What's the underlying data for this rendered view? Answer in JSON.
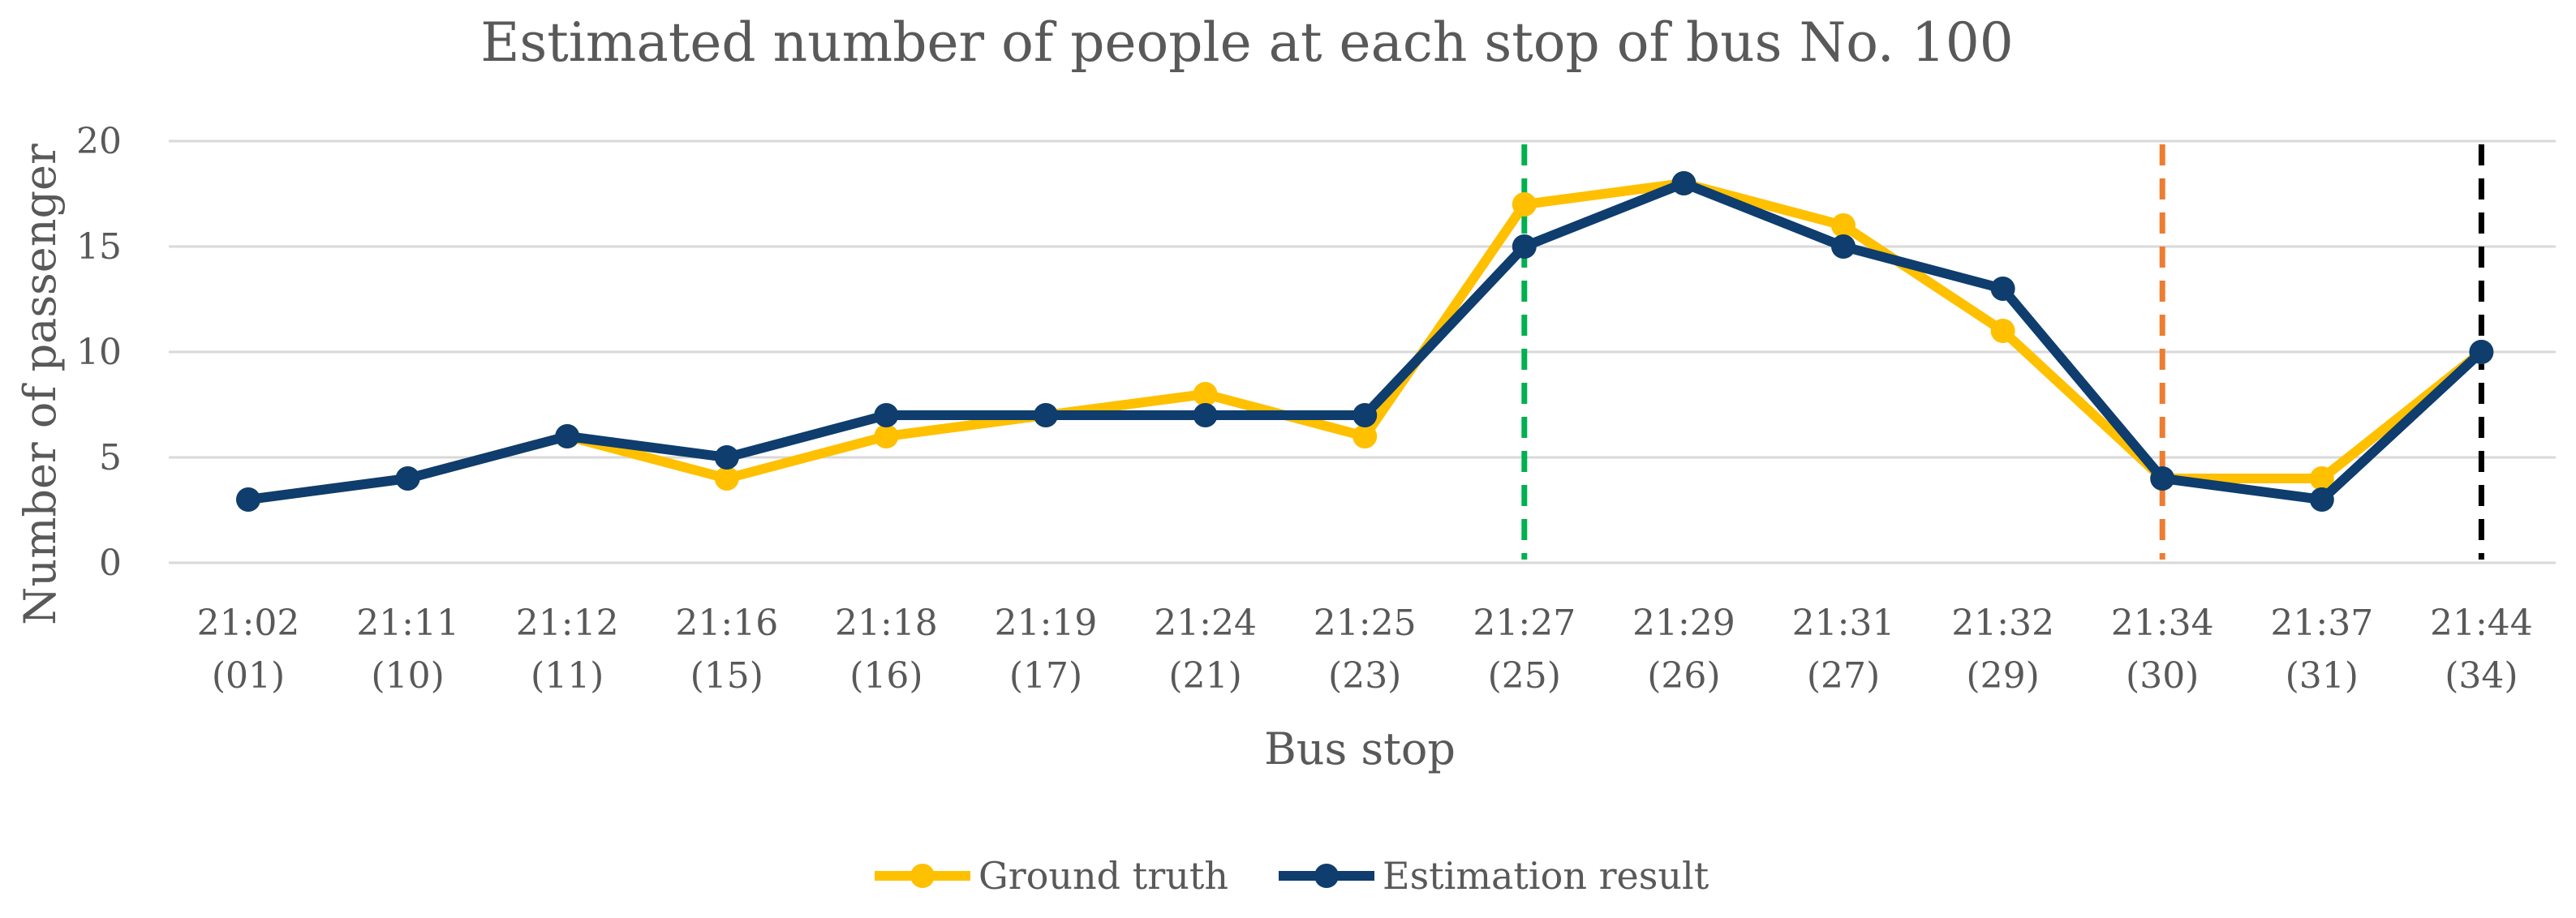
{
  "chart_data": {
    "type": "line",
    "title": "Estimated number of people at each stop of bus No. 100",
    "xlabel": "Bus stop",
    "ylabel": "Number of passenger",
    "ylim": [
      0,
      20
    ],
    "yticks": [
      0,
      5,
      10,
      15,
      20
    ],
    "grid": true,
    "legend_position": "bottom",
    "categories": [
      {
        "time": "21:02",
        "stop": "(01)"
      },
      {
        "time": "21:11",
        "stop": "(10)"
      },
      {
        "time": "21:12",
        "stop": "(11)"
      },
      {
        "time": "21:16",
        "stop": "(15)"
      },
      {
        "time": "21:18",
        "stop": "(16)"
      },
      {
        "time": "21:19",
        "stop": "(17)"
      },
      {
        "time": "21:24",
        "stop": "(21)"
      },
      {
        "time": "21:25",
        "stop": "(23)"
      },
      {
        "time": "21:27",
        "stop": "(25)"
      },
      {
        "time": "21:29",
        "stop": "(26)"
      },
      {
        "time": "21:31",
        "stop": "(27)"
      },
      {
        "time": "21:32",
        "stop": "(29)"
      },
      {
        "time": "21:34",
        "stop": "(30)"
      },
      {
        "time": "21:37",
        "stop": "(31)"
      },
      {
        "time": "21:44",
        "stop": "(34)"
      }
    ],
    "series": [
      {
        "name": "Ground truth",
        "color": "#FFC000",
        "values": [
          3,
          4,
          6,
          4,
          6,
          7,
          8,
          6,
          17,
          18,
          16,
          11,
          4,
          4,
          10
        ]
      },
      {
        "name": "Estimation result",
        "color": "#0E3D6E",
        "values": [
          3,
          4,
          6,
          5,
          7,
          7,
          7,
          7,
          15,
          18,
          15,
          13,
          4,
          3,
          10
        ]
      }
    ],
    "vertical_markers": [
      {
        "category_index": 8,
        "color": "#00B050",
        "style": "dashed"
      },
      {
        "category_index": 12,
        "color": "#ED7D31",
        "style": "dashed"
      },
      {
        "category_index": 14,
        "color": "#000000",
        "style": "dashed"
      }
    ]
  }
}
